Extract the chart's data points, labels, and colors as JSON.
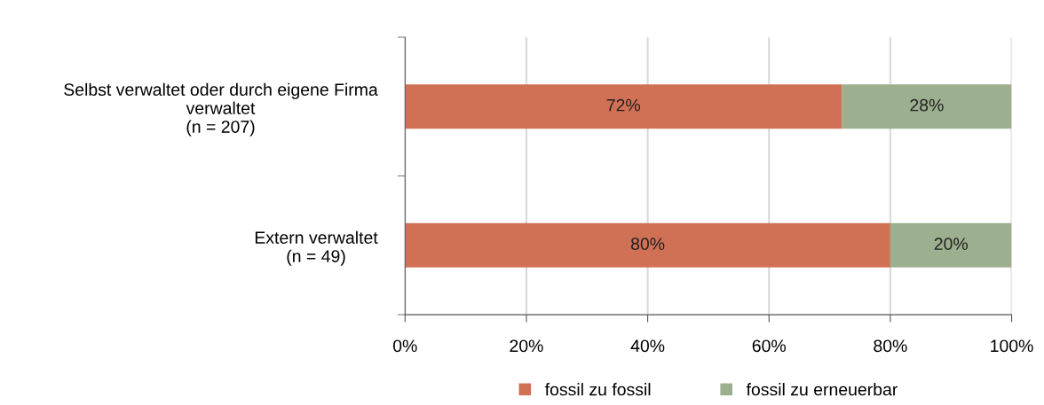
{
  "chart_data": {
    "type": "bar",
    "orientation": "horizontal",
    "stacked": true,
    "categories": [
      "Selbst verwaltet oder durch eigene Firma\nverwaltet\n(n = 207)",
      "Extern verwaltet\n(n = 49)"
    ],
    "series": [
      {
        "name": "fossil zu fossil",
        "color": "#d07155",
        "values": [
          72,
          80
        ],
        "value_labels": [
          "72%",
          "80%"
        ]
      },
      {
        "name": "fossil zu erneuerbar",
        "color": "#9caf8f",
        "values": [
          28,
          20
        ],
        "value_labels": [
          "28%",
          "20%"
        ]
      }
    ],
    "xlim": [
      0,
      100
    ],
    "xticks": [
      {
        "value": 0,
        "label": "0%"
      },
      {
        "value": 20,
        "label": "20%"
      },
      {
        "value": 40,
        "label": "40%"
      },
      {
        "value": 60,
        "label": "60%"
      },
      {
        "value": 80,
        "label": "80%"
      },
      {
        "value": 100,
        "label": "100%"
      }
    ],
    "grid": "x",
    "legend": "bottom"
  }
}
